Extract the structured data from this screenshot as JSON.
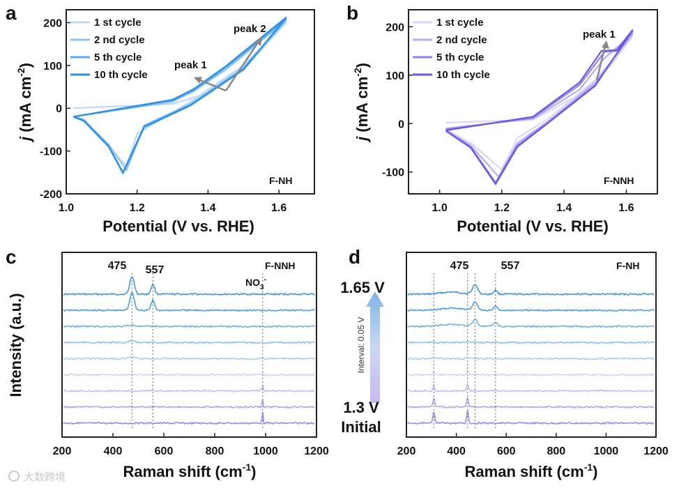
{
  "watermark": "大数跨境",
  "chart_data": [
    {
      "panel": "a",
      "type": "line",
      "title": "",
      "sample": "F-NH",
      "xlabel": "Potential (V vs. RHE)",
      "ylabel_prefix": "j",
      "ylabel_suffix": " (mA cm",
      "ylabel_sup": "-2",
      "ylabel_close": ")",
      "xlim": [
        1.0,
        1.7
      ],
      "ylim": [
        -200,
        230
      ],
      "xticks": [
        "1.0",
        "1.2",
        "1.4",
        "1.6"
      ],
      "yticks": [
        "200",
        "100",
        "0",
        "-100",
        "-200"
      ],
      "legend": [
        "1 st cycle",
        "2 nd cycle",
        "5 th cycle",
        "10 th cycle"
      ],
      "colors": [
        "#bcd9f6",
        "#8ec4f2",
        "#5aa9ec",
        "#2a8fe4"
      ],
      "annotations": [
        "peak 1",
        "peak 2"
      ],
      "series": [
        {
          "name": "1 st cycle",
          "forward": [
            [
              1.02,
              0
            ],
            [
              1.3,
              10
            ],
            [
              1.4,
              35
            ],
            [
              1.5,
              90
            ],
            [
              1.62,
              200
            ]
          ],
          "backward": [
            [
              1.62,
              200
            ],
            [
              1.5,
              100
            ],
            [
              1.35,
              15
            ],
            [
              1.2,
              -60
            ],
            [
              1.17,
              -135
            ],
            [
              1.12,
              -90
            ],
            [
              1.05,
              -25
            ],
            [
              1.02,
              -20
            ]
          ]
        },
        {
          "name": "2 nd cycle",
          "forward": [
            [
              1.02,
              -20
            ],
            [
              1.3,
              15
            ],
            [
              1.36,
              40
            ],
            [
              1.45,
              90
            ],
            [
              1.62,
              205
            ]
          ],
          "backward": [
            [
              1.62,
              205
            ],
            [
              1.5,
              95
            ],
            [
              1.35,
              10
            ],
            [
              1.22,
              -40
            ],
            [
              1.17,
              -145
            ],
            [
              1.12,
              -85
            ],
            [
              1.05,
              -28
            ],
            [
              1.02,
              -20
            ]
          ]
        },
        {
          "name": "5 th cycle",
          "forward": [
            [
              1.02,
              -20
            ],
            [
              1.3,
              18
            ],
            [
              1.36,
              42
            ],
            [
              1.45,
              95
            ],
            [
              1.62,
              208
            ]
          ],
          "backward": [
            [
              1.62,
              208
            ],
            [
              1.5,
              92
            ],
            [
              1.35,
              8
            ],
            [
              1.22,
              -42
            ],
            [
              1.16,
              -150
            ],
            [
              1.12,
              -88
            ],
            [
              1.05,
              -28
            ],
            [
              1.02,
              -20
            ]
          ]
        },
        {
          "name": "10 th cycle",
          "forward": [
            [
              1.02,
              -20
            ],
            [
              1.3,
              20
            ],
            [
              1.36,
              45
            ],
            [
              1.45,
              98
            ],
            [
              1.62,
              212
            ]
          ],
          "backward": [
            [
              1.62,
              212
            ],
            [
              1.5,
              90
            ],
            [
              1.35,
              6
            ],
            [
              1.22,
              -44
            ],
            [
              1.16,
              -152
            ],
            [
              1.12,
              -90
            ],
            [
              1.05,
              -30
            ],
            [
              1.02,
              -20
            ]
          ]
        }
      ]
    },
    {
      "panel": "b",
      "type": "line",
      "sample": "F-NNH",
      "xlabel": "Potential (V vs. RHE)",
      "ylabel_prefix": "j",
      "ylabel_suffix": " (mA cm",
      "ylabel_sup": "-2",
      "ylabel_close": ")",
      "xlim": [
        0.9,
        1.7
      ],
      "ylim": [
        -145,
        235
      ],
      "xticks": [
        "1.0",
        "1.2",
        "1.4",
        "1.6"
      ],
      "yticks": [
        "200",
        "100",
        "0",
        "-100"
      ],
      "legend": [
        "1 st cycle",
        "2 nd cycle",
        "5 th cycle",
        "10 th cycle"
      ],
      "colors": [
        "#d9d6f7",
        "#b5adf1",
        "#8f82ea",
        "#6a58e2"
      ],
      "annotations": [
        "peak 1"
      ],
      "series": [
        {
          "name": "1 st cycle",
          "forward": [
            [
              1.02,
              2
            ],
            [
              1.3,
              8
            ],
            [
              1.45,
              60
            ],
            [
              1.55,
              120
            ],
            [
              1.62,
              180
            ]
          ],
          "backward": [
            [
              1.62,
              180
            ],
            [
              1.5,
              90
            ],
            [
              1.35,
              10
            ],
            [
              1.25,
              -30
            ],
            [
              1.2,
              -95
            ],
            [
              1.1,
              -40
            ],
            [
              1.02,
              -12
            ]
          ]
        },
        {
          "name": "2 nd cycle",
          "forward": [
            [
              1.02,
              -10
            ],
            [
              1.3,
              10
            ],
            [
              1.45,
              70
            ],
            [
              1.53,
              135
            ],
            [
              1.62,
              185
            ]
          ],
          "backward": [
            [
              1.62,
              185
            ],
            [
              1.5,
              85
            ],
            [
              1.35,
              5
            ],
            [
              1.25,
              -40
            ],
            [
              1.19,
              -110
            ],
            [
              1.1,
              -45
            ],
            [
              1.02,
              -14
            ]
          ]
        },
        {
          "name": "5 th cycle",
          "forward": [
            [
              1.02,
              -12
            ],
            [
              1.3,
              12
            ],
            [
              1.45,
              80
            ],
            [
              1.53,
              148
            ],
            [
              1.57,
              150
            ],
            [
              1.62,
              190
            ]
          ],
          "backward": [
            [
              1.62,
              190
            ],
            [
              1.5,
              80
            ],
            [
              1.35,
              3
            ],
            [
              1.25,
              -45
            ],
            [
              1.18,
              -122
            ],
            [
              1.1,
              -48
            ],
            [
              1.02,
              -14
            ]
          ]
        },
        {
          "name": "10 th cycle",
          "forward": [
            [
              1.02,
              -14
            ],
            [
              1.3,
              14
            ],
            [
              1.45,
              85
            ],
            [
              1.52,
              150
            ],
            [
              1.57,
              152
            ],
            [
              1.62,
              193
            ]
          ],
          "backward": [
            [
              1.62,
              193
            ],
            [
              1.5,
              78
            ],
            [
              1.35,
              2
            ],
            [
              1.25,
              -48
            ],
            [
              1.18,
              -125
            ],
            [
              1.1,
              -50
            ],
            [
              1.02,
              -15
            ]
          ]
        }
      ]
    },
    {
      "panel": "c",
      "type": "line",
      "sample": "F-NNH",
      "xlabel_main": "Raman shift (cm",
      "xlabel_sup": "-1",
      "xlabel_close": ")",
      "ylabel": "Intensity (a.u.)",
      "xlim": [
        200,
        1200
      ],
      "xticks": [
        "200",
        "400",
        "600",
        "800",
        "1000",
        "1200"
      ],
      "annotations": [
        "475",
        "557",
        "NO",
        "3",
        "-"
      ],
      "peaks": [
        475,
        557,
        988
      ],
      "colors": [
        "#3d96e3",
        "#4a9fe6",
        "#6fb1ea",
        "#8fc2ee",
        "#a8cff0",
        "#d4d0f4",
        "#c2bcf2",
        "#ada5ee",
        "#958ae9"
      ],
      "series_count": 9
    },
    {
      "panel": "d",
      "type": "line",
      "sample": "F-NH",
      "xlabel_main": "Raman shift (cm",
      "xlabel_sup": "-1",
      "xlabel_close": ")",
      "xlim": [
        200,
        1200
      ],
      "xticks": [
        "200",
        "400",
        "600",
        "800",
        "1000",
        "1200"
      ],
      "annotations": [
        "475",
        "557"
      ],
      "gradient_labels": {
        "top": "1.65 V",
        "interval": "Interval: 0.05 V",
        "bottom1": "1.3 V",
        "bottom2": "Initial"
      },
      "peaks": [
        310,
        445,
        475,
        557
      ],
      "colors": [
        "#3d96e3",
        "#4a9fe6",
        "#6fb1ea",
        "#8fc2ee",
        "#a8cff0",
        "#d4d0f4",
        "#c2bcf2",
        "#ada5ee",
        "#958ae9"
      ],
      "series_count": 9
    }
  ]
}
